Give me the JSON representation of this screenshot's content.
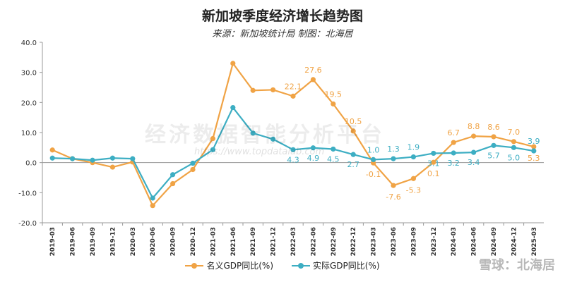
{
  "header": {
    "title": "新加坡季度经济增长趋势图",
    "subtitle": "来源：新加坡统计局 制图：北海居"
  },
  "watermarks": {
    "center": "经济数据智能分析平台",
    "url": "https://www.topdatalab.com",
    "corner": "雪球：北海居"
  },
  "colors": {
    "nominal": "#F0A345",
    "real": "#3DAEC3",
    "axis": "#999999",
    "grid": "#dddddd"
  },
  "chart_data": {
    "type": "line",
    "title": "新加坡季度经济增长趋势图",
    "subtitle": "来源：新加坡统计局 制图：北海居",
    "xlabel": "",
    "ylabel": "",
    "ylim": [
      -20,
      40
    ],
    "yticks": [
      "40.0",
      "30.0",
      "20.0",
      "10.0",
      "0.0",
      "-10.0",
      "-20.0"
    ],
    "grid": false,
    "legend_position": "bottom",
    "categories": [
      "2019-03",
      "2019-06",
      "2019-09",
      "2019-12",
      "2020-03",
      "2020-06",
      "2020-09",
      "2020-12",
      "2021-03",
      "2021-06",
      "2021-09",
      "2021-12",
      "2022-03",
      "2022-06",
      "2022-09",
      "2022-12",
      "2023-03",
      "2023-06",
      "2023-09",
      "2023-12",
      "2024-03",
      "2024-06",
      "2024-09",
      "2024-12",
      "2025-03"
    ],
    "series": [
      {
        "name": "名义GDP同比(%)",
        "values": [
          4.2,
          1.3,
          0.0,
          -1.5,
          0.2,
          -14.3,
          -7.0,
          -2.3,
          8.0,
          33.0,
          24.0,
          24.2,
          22.1,
          27.6,
          19.5,
          10.5,
          -0.1,
          -7.6,
          -5.3,
          0.1,
          6.7,
          8.8,
          8.6,
          7.0,
          5.3
        ],
        "labels": [
          "",
          "",
          "",
          "",
          "",
          "",
          "",
          "",
          "",
          "",
          "",
          "",
          "22.1",
          "27.6",
          "19.5",
          "10.5",
          "-0.1",
          "-7.6",
          "-5.3",
          "0.1",
          "6.7",
          "8.8",
          "8.6",
          "7.0",
          "5.3"
        ]
      },
      {
        "name": "实际GDP同比(%)",
        "values": [
          1.5,
          1.3,
          0.8,
          1.5,
          1.3,
          -11.8,
          -4.0,
          -0.2,
          4.3,
          18.3,
          9.8,
          7.8,
          4.3,
          4.9,
          4.5,
          2.7,
          1.0,
          1.3,
          1.9,
          3.1,
          3.2,
          3.4,
          5.7,
          5.0,
          3.9
        ],
        "labels": [
          "",
          "",
          "",
          "",
          "",
          "",
          "",
          "",
          "",
          "",
          "",
          "",
          "4.3",
          "4.9",
          "4.5",
          "2.7",
          "1.0",
          "1.3",
          "1.9",
          "3.1",
          "3.2",
          "3.4",
          "5.7",
          "5.0",
          "3.9"
        ]
      }
    ]
  }
}
